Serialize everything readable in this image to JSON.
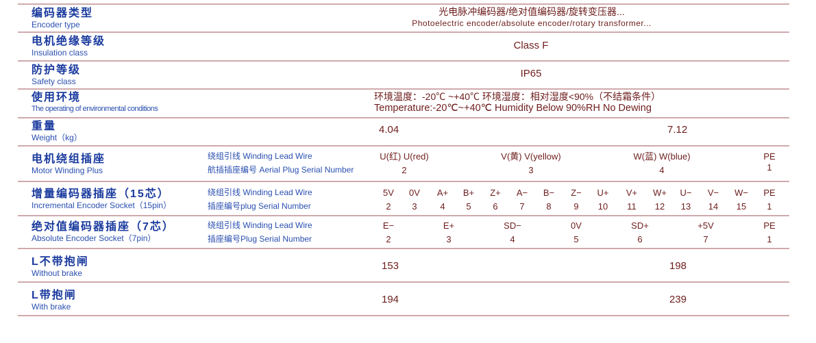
{
  "rows": {
    "encoder": {
      "zh": "编码器类型",
      "en": "Encoder type",
      "v1": "光电脉冲编码器/绝对值编码器/旋转变压器...",
      "v2": "Photoelectric encoder/absolute encoder/rotary transformer..."
    },
    "insulation": {
      "zh": "电机绝缘等级",
      "en": "Insulation class",
      "v": "Class F"
    },
    "safety": {
      "zh": "防护等级",
      "en": "Safety class",
      "v": "IP65"
    },
    "env": {
      "zh": "使用环境",
      "en": "The operating of environmental conditions",
      "v1": "环境温度：-20℃ ~+40℃   环境湿度：相对湿度<90%（不结霜条件）",
      "v2": "Temperature:-20℃~+40℃  Humidity Below 90%RH No Dewing"
    },
    "weight": {
      "zh": "重量",
      "en": "Weight（kg）",
      "values": [
        "4.04",
        "7.12"
      ]
    },
    "winding": {
      "zh": "电机绕组插座",
      "en": "Motor Winding Plus",
      "l1": "绕组引线 Winding Lead Wire",
      "l2": "航插插座编号 Aerial Plug Serial Number",
      "wires": [
        "U(红) U(red)",
        "V(黄) V(yellow)",
        "W(蓝) W(blue)",
        "PE"
      ],
      "nums": [
        "2",
        "3",
        "4",
        "1"
      ]
    },
    "incremental": {
      "zh": "增量编码器插座（15芯）",
      "en": "Incremental Encoder Socket（15pin）",
      "l1": "绕组引线 Winding Lead Wire",
      "l2": "插座编号plug Serial Number",
      "wires": [
        "5V",
        "0V",
        "A+",
        "B+",
        "Z+",
        "A−",
        "B−",
        "Z−",
        "U+",
        "V+",
        "W+",
        "U−",
        "V−",
        "W−",
        "PE"
      ],
      "nums": [
        "2",
        "3",
        "4",
        "5",
        "6",
        "7",
        "8",
        "9",
        "10",
        "11",
        "12",
        "13",
        "14",
        "15",
        "1"
      ]
    },
    "absolute": {
      "zh": "绝对值编码器插座（7芯）",
      "en": "Absolute Encoder Socket（7pin）",
      "l1": "绕组引线 Winding Lead Wire",
      "l2": "插座编号Plug Serial Number",
      "wires": [
        "E−",
        "E+",
        "SD−",
        "0V",
        "SD+",
        "+5V",
        "PE"
      ],
      "nums": [
        "2",
        "3",
        "4",
        "5",
        "6",
        "7",
        "1"
      ]
    },
    "without_brake": {
      "zh": "L不带抱闸",
      "en": "Without brake",
      "values": [
        "153",
        "198"
      ]
    },
    "with_brake": {
      "zh": "L带抱闸",
      "en": "With brake",
      "values": [
        "194",
        "239"
      ]
    }
  }
}
